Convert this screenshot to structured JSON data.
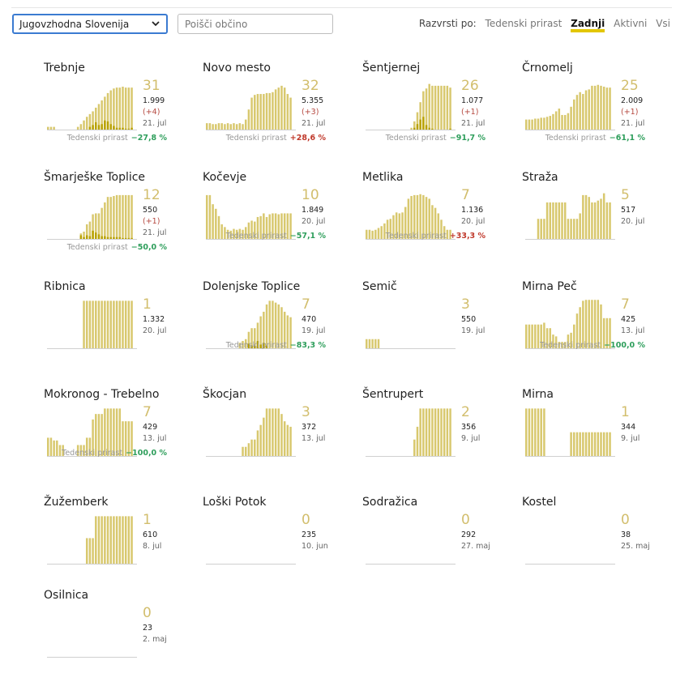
{
  "region_select": {
    "value": "Jugovzhodna Slovenija"
  },
  "search": {
    "placeholder": "Poišči občino"
  },
  "sort": {
    "label": "Razvrsti po:",
    "options": [
      "Tedenski prirast",
      "Zadnji",
      "Aktivni",
      "Vsi"
    ],
    "active": "Zadnji"
  },
  "colors": {
    "bar": "#d8c86e",
    "bar_new": "#b8a100",
    "baseline": "#d0d0d0",
    "accent": "#e3c600",
    "weekly_up": "#c0392b",
    "weekly_down": "#2e9e5b"
  },
  "weekly_label": "Tedenski prirast",
  "municipalities": [
    {
      "name": "Trebnje",
      "active": "31",
      "total": "1.999",
      "delta": "(+4)",
      "date": "21. jul",
      "weekly": "−27,8 %",
      "trend": "down",
      "bars": [
        3,
        3,
        3,
        0,
        0,
        0,
        0,
        0,
        0,
        0,
        3,
        6,
        10,
        14,
        17,
        20,
        24,
        28,
        32,
        36,
        40,
        43,
        45,
        46,
        46,
        47,
        46,
        46,
        46
      ],
      "new": [
        0,
        0,
        0,
        0,
        0,
        0,
        0,
        0,
        0,
        0,
        0,
        0,
        0,
        0,
        3,
        5,
        8,
        5,
        6,
        10,
        9,
        6,
        4,
        2,
        2,
        2,
        1,
        1,
        2
      ]
    },
    {
      "name": "Novo mesto",
      "active": "32",
      "total": "5.355",
      "delta": "(+3)",
      "date": "21. jul",
      "weekly": "+28,6 %",
      "trend": "up",
      "bars": [
        7,
        7,
        6,
        6,
        7,
        7,
        6,
        7,
        6,
        7,
        6,
        7,
        6,
        11,
        22,
        35,
        38,
        39,
        39,
        39,
        40,
        40,
        41,
        44,
        46,
        48,
        46,
        39,
        35
      ],
      "new": [
        0,
        0,
        0,
        0,
        0,
        0,
        0,
        0,
        0,
        0,
        0,
        0,
        0,
        0,
        0,
        0,
        0,
        0,
        0,
        0,
        0,
        0,
        0,
        0,
        0,
        0,
        0,
        0,
        0
      ]
    },
    {
      "name": "Šentjernej",
      "active": "26",
      "total": "1.077",
      "delta": "(+1)",
      "date": "21. jul",
      "weekly": "−91,7 %",
      "trend": "down",
      "bars": [
        0,
        0,
        0,
        0,
        0,
        0,
        0,
        0,
        0,
        0,
        0,
        0,
        0,
        0,
        0,
        2,
        9,
        19,
        30,
        42,
        45,
        50,
        48,
        48,
        48,
        48,
        48,
        48,
        46
      ],
      "new": [
        0,
        0,
        0,
        0,
        0,
        0,
        0,
        0,
        0,
        0,
        0,
        0,
        0,
        0,
        0,
        0,
        2,
        6,
        11,
        14,
        5,
        2,
        1,
        0,
        0,
        0,
        0,
        0,
        1
      ]
    },
    {
      "name": "Črnomelj",
      "active": "25",
      "total": "2.009",
      "delta": "(+1)",
      "date": "21. jul",
      "weekly": "−61,1 %",
      "trend": "down",
      "bars": [
        11,
        11,
        11,
        12,
        12,
        13,
        13,
        14,
        15,
        17,
        20,
        23,
        16,
        16,
        18,
        25,
        33,
        38,
        41,
        39,
        43,
        44,
        48,
        48,
        49,
        48,
        47,
        46,
        46
      ],
      "new": [
        0,
        0,
        0,
        0,
        0,
        0,
        0,
        0,
        0,
        0,
        0,
        0,
        0,
        0,
        0,
        0,
        0,
        0,
        0,
        0,
        0,
        0,
        0,
        0,
        0,
        0,
        0,
        0,
        0
      ]
    },
    {
      "name": "Šmarješke Toplice",
      "active": "12",
      "total": "550",
      "delta": "(+1)",
      "date": "21. jul",
      "weekly": "−50,0 %",
      "trend": "down",
      "bars": [
        0,
        0,
        0,
        0,
        0,
        0,
        0,
        0,
        0,
        0,
        0,
        6,
        8,
        16,
        19,
        27,
        28,
        28,
        34,
        40,
        46,
        46,
        47,
        48,
        48,
        48,
        48,
        48,
        48
      ],
      "new": [
        0,
        0,
        0,
        0,
        0,
        0,
        0,
        0,
        0,
        0,
        0,
        4,
        2,
        4,
        3,
        9,
        7,
        5,
        3,
        3,
        2,
        2,
        2,
        2,
        2,
        1,
        1,
        1,
        1
      ]
    },
    {
      "name": "Kočevje",
      "active": "10",
      "total": "1.849",
      "delta": "",
      "date": "20. jul",
      "weekly": "−57,1 %",
      "trend": "down",
      "bars": [
        48,
        48,
        38,
        33,
        25,
        16,
        13,
        10,
        9,
        11,
        10,
        11,
        10,
        13,
        18,
        20,
        19,
        24,
        25,
        28,
        24,
        27,
        28,
        28,
        27,
        28,
        28,
        28,
        28
      ],
      "new": [
        0,
        0,
        0,
        0,
        0,
        0,
        0,
        0,
        0,
        0,
        0,
        0,
        0,
        0,
        0,
        0,
        0,
        0,
        0,
        0,
        0,
        0,
        0,
        0,
        0,
        0,
        0,
        0,
        0
      ]
    },
    {
      "name": "Metlika",
      "active": "7",
      "total": "1.136",
      "delta": "",
      "date": "20. jul",
      "weekly": "+33,3 %",
      "trend": "up",
      "bars": [
        10,
        10,
        9,
        10,
        12,
        14,
        17,
        21,
        22,
        26,
        29,
        28,
        29,
        35,
        44,
        47,
        48,
        48,
        49,
        48,
        46,
        44,
        37,
        34,
        28,
        21,
        14,
        10,
        10
      ],
      "new": [
        0,
        0,
        0,
        0,
        0,
        0,
        0,
        0,
        0,
        0,
        0,
        0,
        0,
        0,
        0,
        0,
        0,
        0,
        0,
        0,
        0,
        0,
        0,
        0,
        0,
        0,
        0,
        0,
        0
      ]
    },
    {
      "name": "Straža",
      "active": "5",
      "total": "517",
      "delta": "",
      "date": "20. jul",
      "weekly": "",
      "trend": "",
      "bars": [
        0,
        0,
        0,
        0,
        22,
        22,
        22,
        40,
        40,
        40,
        40,
        40,
        40,
        40,
        22,
        22,
        22,
        22,
        28,
        48,
        48,
        46,
        40,
        40,
        42,
        44,
        50,
        40,
        40
      ],
      "new": [
        0,
        0,
        0,
        0,
        0,
        0,
        0,
        0,
        0,
        0,
        0,
        0,
        0,
        0,
        0,
        0,
        0,
        0,
        0,
        0,
        0,
        0,
        0,
        0,
        0,
        0,
        0,
        0,
        0
      ]
    },
    {
      "name": "Ribnica",
      "active": "1",
      "total": "1.332",
      "delta": "",
      "date": "20. jul",
      "weekly": "",
      "trend": "",
      "bars": [
        0,
        0,
        0,
        0,
        0,
        0,
        0,
        0,
        0,
        0,
        0,
        0,
        52,
        52,
        52,
        52,
        52,
        52,
        52,
        52,
        52,
        52,
        52,
        52,
        52,
        52,
        52,
        52,
        52
      ],
      "new": [
        0,
        0,
        0,
        0,
        0,
        0,
        0,
        0,
        0,
        0,
        0,
        0,
        0,
        0,
        0,
        0,
        0,
        0,
        0,
        0,
        0,
        0,
        0,
        0,
        0,
        0,
        0,
        0,
        0
      ]
    },
    {
      "name": "Dolenjske Toplice",
      "active": "7",
      "total": "470",
      "delta": "",
      "date": "19. jul",
      "weekly": "−83,3 %",
      "trend": "down",
      "bars": [
        0,
        0,
        0,
        0,
        0,
        0,
        0,
        0,
        0,
        0,
        0,
        6,
        8,
        10,
        18,
        22,
        22,
        28,
        35,
        40,
        48,
        52,
        52,
        50,
        48,
        45,
        40,
        36,
        34
      ],
      "new": [
        0,
        0,
        0,
        0,
        0,
        0,
        0,
        0,
        0,
        0,
        0,
        0,
        0,
        0,
        5,
        3,
        3,
        8,
        4,
        6,
        3,
        0,
        0,
        0,
        0,
        0,
        0,
        0,
        0
      ]
    },
    {
      "name": "Semič",
      "active": "3",
      "total": "550",
      "delta": "",
      "date": "19. jul",
      "weekly": "",
      "trend": "",
      "bars": [
        10,
        10,
        10,
        10,
        10,
        0,
        0,
        0,
        0,
        0,
        0,
        0,
        0,
        0,
        0,
        0,
        0,
        0,
        0,
        0,
        0,
        0,
        0,
        0,
        0,
        0,
        0,
        0,
        0
      ],
      "new": [
        0,
        0,
        0,
        0,
        0,
        0,
        0,
        0,
        0,
        0,
        0,
        0,
        0,
        0,
        0,
        0,
        0,
        0,
        0,
        0,
        0,
        0,
        0,
        0,
        0,
        0,
        0,
        0,
        0
      ]
    },
    {
      "name": "Mirna Peč",
      "active": "7",
      "total": "425",
      "delta": "",
      "date": "13. jul",
      "weekly": "−100,0 %",
      "trend": "down",
      "bars": [
        26,
        26,
        26,
        26,
        26,
        26,
        28,
        22,
        22,
        15,
        13,
        7,
        7,
        7,
        15,
        17,
        26,
        38,
        45,
        52,
        53,
        53,
        53,
        53,
        53,
        48,
        33,
        33,
        33
      ],
      "new": [
        0,
        0,
        0,
        0,
        0,
        0,
        0,
        0,
        0,
        0,
        0,
        0,
        0,
        0,
        0,
        0,
        0,
        0,
        0,
        0,
        0,
        0,
        0,
        0,
        0,
        0,
        0,
        0,
        0
      ]
    },
    {
      "name": "Mokronog - Trebelno",
      "active": "7",
      "total": "429",
      "delta": "",
      "date": "13. jul",
      "weekly": "−100,0 %",
      "trend": "down",
      "bars": [
        20,
        20,
        17,
        17,
        12,
        12,
        0,
        0,
        0,
        0,
        12,
        12,
        12,
        20,
        20,
        40,
        46,
        46,
        46,
        52,
        52,
        52,
        52,
        52,
        52,
        38,
        38,
        38,
        38
      ],
      "new": [
        0,
        0,
        0,
        0,
        0,
        0,
        0,
        0,
        0,
        0,
        0,
        0,
        0,
        0,
        0,
        0,
        0,
        0,
        0,
        0,
        0,
        0,
        0,
        0,
        0,
        0,
        0,
        0,
        0
      ]
    },
    {
      "name": "Škocjan",
      "active": "3",
      "total": "372",
      "delta": "",
      "date": "13. jul",
      "weekly": "",
      "trend": "",
      "bars": [
        0,
        0,
        0,
        0,
        0,
        0,
        0,
        0,
        0,
        0,
        0,
        0,
        10,
        10,
        14,
        18,
        18,
        28,
        34,
        42,
        52,
        52,
        52,
        52,
        52,
        46,
        38,
        34,
        32
      ],
      "new": [
        0,
        0,
        0,
        0,
        0,
        0,
        0,
        0,
        0,
        0,
        0,
        0,
        0,
        0,
        0,
        0,
        0,
        0,
        0,
        0,
        0,
        0,
        0,
        0,
        0,
        0,
        0,
        0,
        0
      ]
    },
    {
      "name": "Šentrupert",
      "active": "2",
      "total": "356",
      "delta": "",
      "date": "9. jul",
      "weekly": "",
      "trend": "",
      "bars": [
        0,
        0,
        0,
        0,
        0,
        0,
        0,
        0,
        0,
        0,
        0,
        0,
        0,
        0,
        0,
        0,
        18,
        32,
        52,
        52,
        52,
        52,
        52,
        52,
        52,
        52,
        52,
        52,
        52
      ],
      "new": [
        0,
        0,
        0,
        0,
        0,
        0,
        0,
        0,
        0,
        0,
        0,
        0,
        0,
        0,
        0,
        0,
        0,
        0,
        0,
        0,
        0,
        0,
        0,
        0,
        0,
        0,
        0,
        0,
        0
      ]
    },
    {
      "name": "Mirna",
      "active": "1",
      "total": "344",
      "delta": "",
      "date": "9. jul",
      "weekly": "",
      "trend": "",
      "bars": [
        52,
        52,
        52,
        52,
        52,
        52,
        52,
        0,
        0,
        0,
        0,
        0,
        0,
        0,
        0,
        26,
        26,
        26,
        26,
        26,
        26,
        26,
        26,
        26,
        26,
        26,
        26,
        26,
        26
      ],
      "new": [
        0,
        0,
        0,
        0,
        0,
        0,
        0,
        0,
        0,
        0,
        0,
        0,
        0,
        0,
        0,
        0,
        0,
        0,
        0,
        0,
        0,
        0,
        0,
        0,
        0,
        0,
        0,
        0,
        0
      ]
    },
    {
      "name": "Žužemberk",
      "active": "1",
      "total": "610",
      "delta": "",
      "date": "8. jul",
      "weekly": "",
      "trend": "",
      "bars": [
        0,
        0,
        0,
        0,
        0,
        0,
        0,
        0,
        0,
        0,
        0,
        0,
        0,
        28,
        28,
        28,
        52,
        52,
        52,
        52,
        52,
        52,
        52,
        52,
        52,
        52,
        52,
        52,
        52
      ],
      "new": [
        0,
        0,
        0,
        0,
        0,
        0,
        0,
        0,
        0,
        0,
        0,
        0,
        0,
        0,
        0,
        0,
        0,
        0,
        0,
        0,
        0,
        0,
        0,
        0,
        0,
        0,
        0,
        0,
        0
      ]
    },
    {
      "name": "Loški Potok",
      "active": "0",
      "total": "235",
      "delta": "",
      "date": "10. jun",
      "weekly": "",
      "trend": "",
      "bars": [],
      "new": []
    },
    {
      "name": "Sodražica",
      "active": "0",
      "total": "292",
      "delta": "",
      "date": "27. maj",
      "weekly": "",
      "trend": "",
      "bars": [],
      "new": []
    },
    {
      "name": "Kostel",
      "active": "0",
      "total": "38",
      "delta": "",
      "date": "25. maj",
      "weekly": "",
      "trend": "",
      "bars": [],
      "new": []
    },
    {
      "name": "Osilnica",
      "active": "0",
      "total": "23",
      "delta": "",
      "date": "2. maj",
      "weekly": "",
      "trend": "",
      "bars": [],
      "new": []
    }
  ]
}
